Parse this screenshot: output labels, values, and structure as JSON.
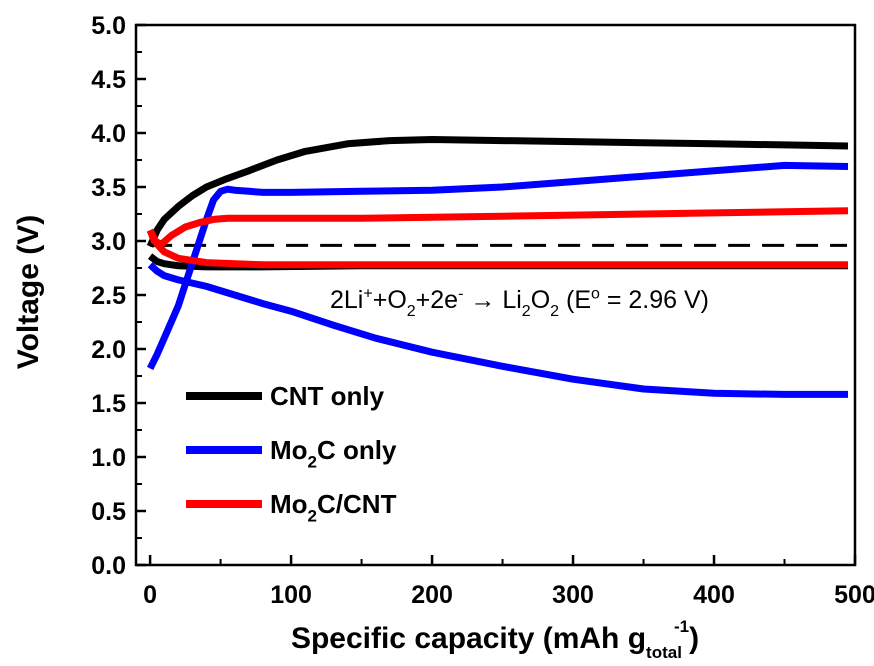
{
  "chart_data": {
    "type": "line",
    "title": "",
    "xlabel": "Specific capacity (mAh g",
    "xlabel_sub": "total",
    "xlabel_sup": "-1",
    "xlabel_end": ")",
    "ylabel": "Voltage (V)",
    "xlim": [
      -10,
      500
    ],
    "ylim": [
      0,
      5
    ],
    "xticks": [
      "0",
      "100",
      "200",
      "300",
      "400",
      "500"
    ],
    "yticks": [
      "0.0",
      "0.5",
      "1.0",
      "1.5",
      "2.0",
      "2.5",
      "3.0",
      "3.5",
      "4.0",
      "4.5",
      "5.0"
    ],
    "grid": false,
    "legend_position": "bottom-left",
    "reference_line": {
      "y": 2.96,
      "style": "dashed",
      "color": "#000000"
    },
    "annotation": {
      "parts": [
        {
          "t": "2Li",
          "s": "n"
        },
        {
          "t": "+",
          "s": "sup"
        },
        {
          "t": "+O",
          "s": "n"
        },
        {
          "t": "2",
          "s": "sub"
        },
        {
          "t": "+2e",
          "s": "n"
        },
        {
          "t": "-",
          "s": "sup"
        },
        {
          "t": " → Li",
          "s": "n"
        },
        {
          "t": "2",
          "s": "sub"
        },
        {
          "t": "O",
          "s": "n"
        },
        {
          "t": "2",
          "s": "sub"
        },
        {
          "t": " (E",
          "s": "n"
        },
        {
          "t": "o",
          "s": "sup"
        },
        {
          "t": " = 2.96 V)",
          "s": "n"
        }
      ]
    },
    "series": [
      {
        "name": "CNT only",
        "legend_parts": [
          {
            "t": "CNT only",
            "s": "n"
          }
        ],
        "color": "#000000",
        "charge": {
          "x": [
            0,
            5,
            10,
            20,
            30,
            40,
            55,
            70,
            90,
            110,
            140,
            170,
            200,
            250,
            300,
            350,
            400,
            450,
            495
          ],
          "y": [
            2.95,
            3.1,
            3.2,
            3.32,
            3.42,
            3.5,
            3.58,
            3.65,
            3.75,
            3.83,
            3.9,
            3.93,
            3.94,
            3.93,
            3.92,
            3.91,
            3.9,
            3.89,
            3.88
          ]
        },
        "discharge": {
          "x": [
            0,
            5,
            10,
            20,
            40,
            80,
            150,
            250,
            350,
            450,
            495
          ],
          "y": [
            2.86,
            2.81,
            2.79,
            2.77,
            2.76,
            2.76,
            2.77,
            2.77,
            2.77,
            2.77,
            2.77
          ]
        }
      },
      {
        "name": "Mo2C only",
        "legend_parts": [
          {
            "t": "Mo",
            "s": "n"
          },
          {
            "t": "2",
            "s": "sub"
          },
          {
            "t": "C only",
            "s": "n"
          }
        ],
        "color": "#0000ff",
        "charge": {
          "x": [
            0,
            5,
            10,
            20,
            30,
            40,
            45,
            50,
            55,
            60,
            70,
            80,
            100,
            150,
            200,
            250,
            300,
            350,
            400,
            450,
            495
          ],
          "y": [
            1.82,
            1.95,
            2.1,
            2.4,
            2.8,
            3.2,
            3.38,
            3.46,
            3.48,
            3.47,
            3.46,
            3.45,
            3.45,
            3.46,
            3.47,
            3.5,
            3.55,
            3.6,
            3.65,
            3.7,
            3.69
          ]
        },
        "discharge": {
          "x": [
            0,
            5,
            10,
            20,
            40,
            60,
            80,
            100,
            130,
            160,
            200,
            250,
            300,
            350,
            400,
            450,
            495
          ],
          "y": [
            2.78,
            2.72,
            2.68,
            2.64,
            2.58,
            2.5,
            2.42,
            2.35,
            2.22,
            2.1,
            1.97,
            1.84,
            1.72,
            1.63,
            1.59,
            1.58,
            1.58
          ]
        }
      },
      {
        "name": "Mo2C/CNT",
        "legend_parts": [
          {
            "t": "Mo",
            "s": "n"
          },
          {
            "t": "2",
            "s": "sub"
          },
          {
            "t": "C/CNT",
            "s": "n"
          }
        ],
        "color": "#ff0000",
        "charge": {
          "x": [
            0,
            3,
            8,
            15,
            25,
            35,
            45,
            55,
            70,
            100,
            150,
            200,
            250,
            300,
            350,
            400,
            450,
            495
          ],
          "y": [
            3.1,
            3.0,
            2.97,
            3.05,
            3.13,
            3.17,
            3.2,
            3.21,
            3.21,
            3.21,
            3.21,
            3.22,
            3.23,
            3.24,
            3.25,
            3.26,
            3.27,
            3.28
          ]
        },
        "discharge": {
          "x": [
            0,
            5,
            10,
            20,
            40,
            80,
            150,
            250,
            350,
            450,
            495
          ],
          "y": [
            3.1,
            2.97,
            2.9,
            2.84,
            2.8,
            2.78,
            2.78,
            2.78,
            2.78,
            2.78,
            2.78
          ]
        }
      }
    ]
  }
}
